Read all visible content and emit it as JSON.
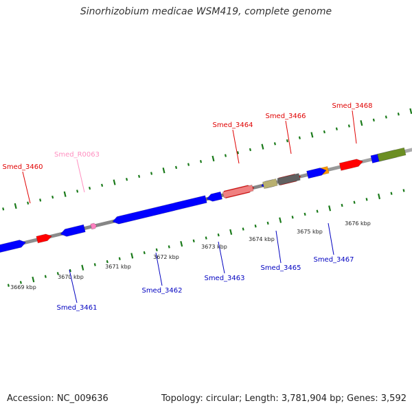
{
  "title": "Sinorhizobium medicae WSM419, complete genome",
  "footer": {
    "accession": "Accession: NC_009636",
    "summary": "Topology: circular; Length: 3,781,904 bp; Genes: 3,592"
  },
  "colors": {
    "backbone": "#808080",
    "tick": "#1a7a1a",
    "forward_label": "#e00000",
    "reverse_label": "#0000c0",
    "rna_label": "#ff8fc0"
  },
  "ticks": [
    {
      "label": "3669 kbp"
    },
    {
      "label": "3670 kbp"
    },
    {
      "label": "3671 kbp"
    },
    {
      "label": "3672 kbp"
    },
    {
      "label": "3673 kbp"
    },
    {
      "label": "3674 kbp"
    },
    {
      "label": "3675 kbp"
    },
    {
      "label": "3676 kbp"
    }
  ],
  "gene_labels": [
    {
      "text": "Smed_3460",
      "strand": "forward"
    },
    {
      "text": "Smed_R0063",
      "strand": "rna"
    },
    {
      "text": "Smed_3464",
      "strand": "forward"
    },
    {
      "text": "Smed_3466",
      "strand": "forward"
    },
    {
      "text": "Smed_3468",
      "strand": "forward"
    },
    {
      "text": "Smed_3461",
      "strand": "reverse"
    },
    {
      "text": "Smed_3462",
      "strand": "reverse"
    },
    {
      "text": "Smed_3463",
      "strand": "reverse"
    },
    {
      "text": "Smed_3465",
      "strand": "reverse"
    },
    {
      "text": "Smed_3467",
      "strand": "reverse"
    }
  ],
  "features": [
    {
      "name": "Smed_3459",
      "strand": "reverse",
      "color": "#0000ff",
      "arrow": "right"
    },
    {
      "name": "Smed_3460",
      "strand": "forward",
      "color": "#ff0000",
      "arrow": "right"
    },
    {
      "name": "Smed_3461",
      "strand": "reverse",
      "color": "#0000ff",
      "arrow": "left"
    },
    {
      "name": "Smed_R0063",
      "strand": "rna",
      "color": "#ff80c0",
      "arrow": "right"
    },
    {
      "name": "Smed_3462",
      "strand": "reverse",
      "color": "#0000ff",
      "arrow": "left"
    },
    {
      "name": "Smed_3463",
      "strand": "reverse",
      "color": "#0000ff",
      "arrow": "left"
    },
    {
      "name": "Smed_3464",
      "strand": "forward",
      "color": "#ff0000",
      "arrow": "right"
    },
    {
      "name": "Smed_3464b",
      "strand": "forward",
      "color": "#f08080",
      "arrow": "none"
    },
    {
      "name": "Smed_3465a",
      "strand": "reverse",
      "color": "#0000ff",
      "arrow": "left"
    },
    {
      "name": "Smed_3465b",
      "strand": "reverse",
      "color": "#b8b070",
      "arrow": "none"
    },
    {
      "name": "Smed_3466",
      "strand": "forward",
      "color": "#ff0000",
      "arrow": "right"
    },
    {
      "name": "Smed_3466b",
      "strand": "forward",
      "color": "#606060",
      "arrow": "none"
    },
    {
      "name": "Smed_3467",
      "strand": "reverse",
      "color": "#ff9900",
      "arrow": "none"
    },
    {
      "name": "Smed_3467b",
      "strand": "reverse",
      "color": "#0000ff",
      "arrow": "right"
    },
    {
      "name": "Smed_3468",
      "strand": "forward",
      "color": "#ff0000",
      "arrow": "right"
    },
    {
      "name": "Smed_3469",
      "strand": "reverse",
      "color": "#0000ff",
      "arrow": "right"
    },
    {
      "name": "Smed_3470",
      "strand": "reverse",
      "color": "#6b8e23",
      "arrow": "none"
    }
  ]
}
